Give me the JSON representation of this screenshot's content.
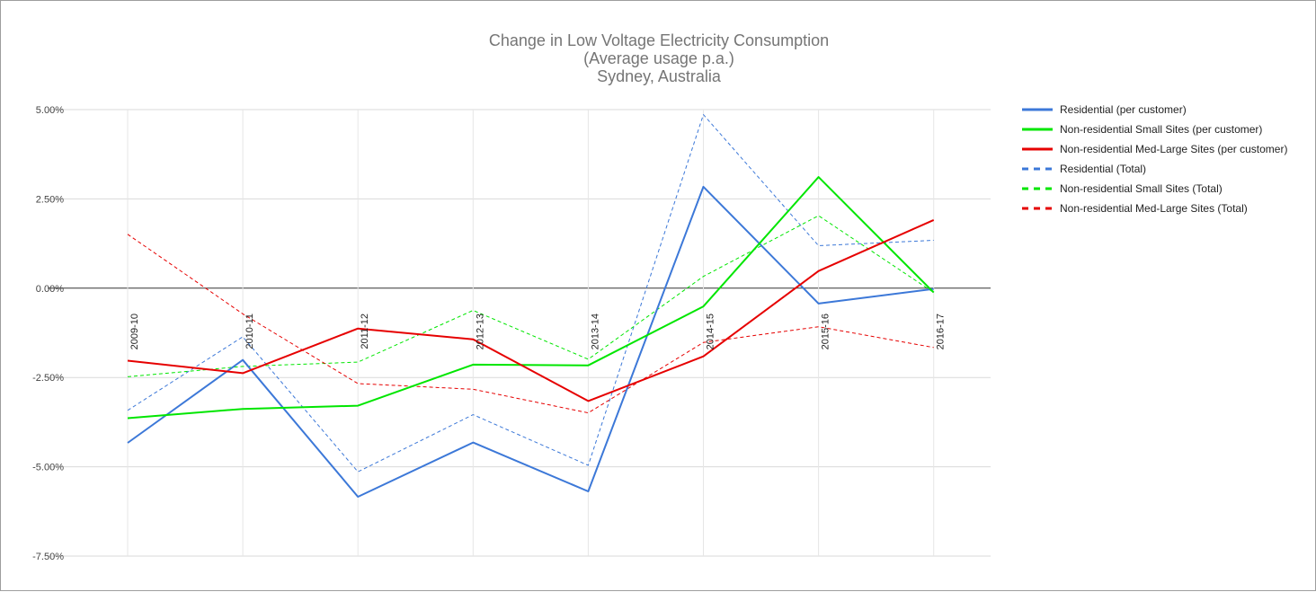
{
  "chart_data": {
    "type": "line",
    "title": [
      "Change in Low Voltage Electricity Consumption",
      "(Average usage p.a.)",
      "Sydney, Australia"
    ],
    "xlabel": "",
    "ylabel": "",
    "categories": [
      "2009-10",
      "2010-11",
      "2011-12",
      "2012-13",
      "2013-14",
      "2014-15",
      "2015-16",
      "2016-17"
    ],
    "ylim": [
      -0.075,
      0.05
    ],
    "yticks": [
      0.05,
      0.025,
      0.0,
      -0.025,
      -0.05,
      -0.075
    ],
    "ytick_labels": [
      "5.00%",
      "2.50%",
      "0.00%",
      "-2.50%",
      "-5.00%",
      "-7.50%"
    ],
    "legend_position": "right",
    "series": [
      {
        "name": "Residential (per customer)",
        "color": "#3c78d8",
        "style": "solid",
        "values": [
          -0.0433,
          -0.0201,
          -0.0584,
          -0.0432,
          -0.0569,
          0.0284,
          -0.0043,
          -0.0002
        ]
      },
      {
        "name": "Non-residential Small Sites (per customer)",
        "color": "#00e600",
        "style": "solid",
        "values": [
          -0.0364,
          -0.0338,
          -0.0329,
          -0.0214,
          -0.0216,
          -0.0051,
          0.0311,
          -0.0012
        ]
      },
      {
        "name": "Non-residential Med-Large Sites (per customer)",
        "color": "#e60000",
        "style": "solid",
        "values": [
          -0.0203,
          -0.0238,
          -0.0113,
          -0.0143,
          -0.0316,
          -0.0191,
          0.0048,
          0.0191
        ]
      },
      {
        "name": "Residential (Total)",
        "color": "#3c78d8",
        "style": "dashed",
        "values": [
          -0.0342,
          -0.0136,
          -0.0514,
          -0.0354,
          -0.0496,
          0.0486,
          0.0119,
          0.0134
        ]
      },
      {
        "name": "Non-residential Small Sites (Total)",
        "color": "#00e600",
        "style": "dashed",
        "values": [
          -0.0248,
          -0.0219,
          -0.0207,
          -0.0062,
          -0.0199,
          0.0033,
          0.0203,
          -0.0012
        ]
      },
      {
        "name": "Non-residential Med-Large Sites (Total)",
        "color": "#e60000",
        "style": "dashed",
        "values": [
          0.0151,
          -0.0072,
          -0.0267,
          -0.0283,
          -0.0349,
          -0.0152,
          -0.0108,
          -0.0166
        ]
      }
    ]
  }
}
